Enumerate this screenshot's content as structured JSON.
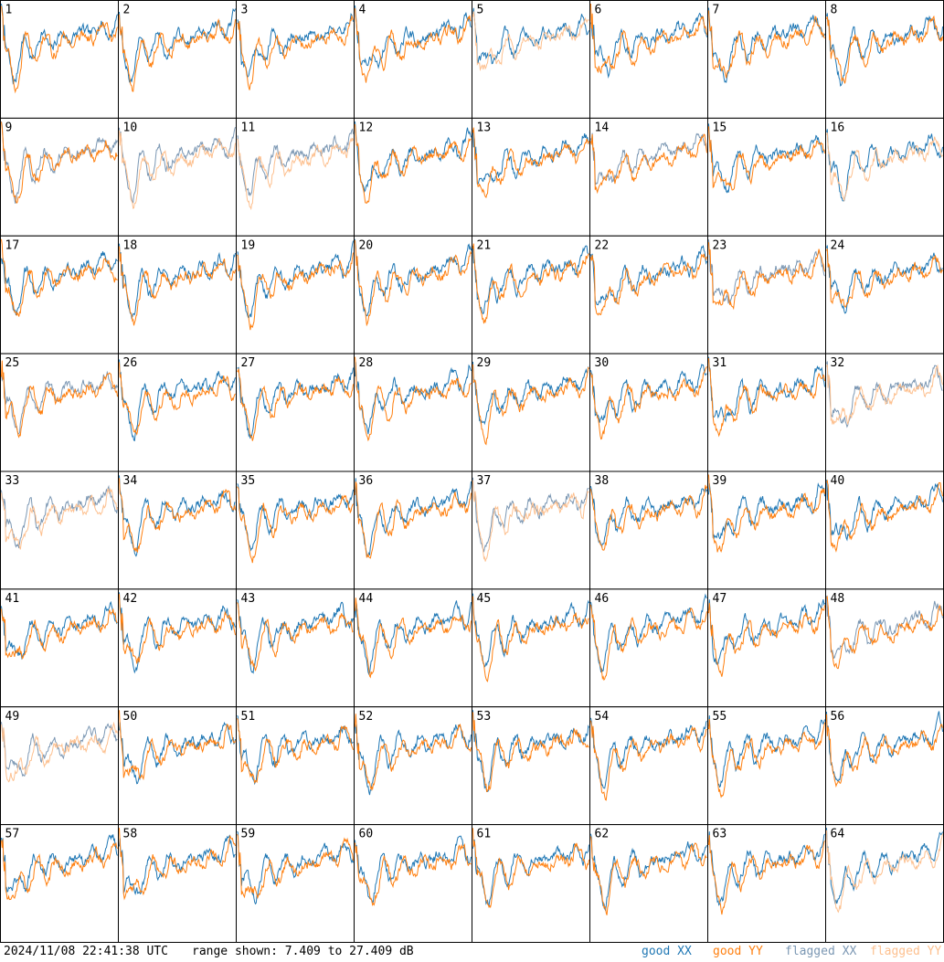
{
  "footer": {
    "timestamp": "2024/11/08 22:41:38 UTC",
    "range": "range shown: 7.409 to 27.409 dB"
  },
  "legend": [
    {
      "label": "good XX",
      "color": "#1f77b4"
    },
    {
      "label": "good YY",
      "color": "#ff7f0e"
    },
    {
      "label": "flagged XX",
      "color": "#7b97b3"
    },
    {
      "label": "flagged YY",
      "color": "#fdc08f"
    }
  ],
  "chart_data": {
    "type": "line",
    "layout": "small-multiples 8x8",
    "ylim": [
      7.409,
      27.409
    ],
    "y_unit": "dB",
    "panels": [
      {
        "id": "1",
        "xx": "good",
        "yy": "good"
      },
      {
        "id": "2",
        "xx": "good",
        "yy": "good"
      },
      {
        "id": "3",
        "xx": "good",
        "yy": "good"
      },
      {
        "id": "4",
        "xx": "good",
        "yy": "good"
      },
      {
        "id": "5",
        "xx": "good",
        "yy": "flagged"
      },
      {
        "id": "6",
        "xx": "good",
        "yy": "good"
      },
      {
        "id": "7",
        "xx": "good",
        "yy": "good"
      },
      {
        "id": "8",
        "xx": "good",
        "yy": "good"
      },
      {
        "id": "9",
        "xx": "flagged",
        "yy": "good"
      },
      {
        "id": "10",
        "xx": "flagged",
        "yy": "flagged"
      },
      {
        "id": "11",
        "xx": "flagged",
        "yy": "flagged"
      },
      {
        "id": "12",
        "xx": "good",
        "yy": "good"
      },
      {
        "id": "13",
        "xx": "good",
        "yy": "good"
      },
      {
        "id": "14",
        "xx": "flagged",
        "yy": "good"
      },
      {
        "id": "15",
        "xx": "good",
        "yy": "good"
      },
      {
        "id": "16",
        "xx": "good",
        "yy": "flagged"
      },
      {
        "id": "17",
        "xx": "good",
        "yy": "good"
      },
      {
        "id": "18",
        "xx": "good",
        "yy": "good"
      },
      {
        "id": "19",
        "xx": "good",
        "yy": "good"
      },
      {
        "id": "20",
        "xx": "good",
        "yy": "good"
      },
      {
        "id": "21",
        "xx": "good",
        "yy": "good"
      },
      {
        "id": "22",
        "xx": "good",
        "yy": "good"
      },
      {
        "id": "23",
        "xx": "flagged",
        "yy": "good"
      },
      {
        "id": "24",
        "xx": "good",
        "yy": "good"
      },
      {
        "id": "25",
        "xx": "flagged",
        "yy": "good"
      },
      {
        "id": "26",
        "xx": "good",
        "yy": "good"
      },
      {
        "id": "27",
        "xx": "good",
        "yy": "good"
      },
      {
        "id": "28",
        "xx": "good",
        "yy": "good"
      },
      {
        "id": "29",
        "xx": "good",
        "yy": "good"
      },
      {
        "id": "30",
        "xx": "good",
        "yy": "good"
      },
      {
        "id": "31",
        "xx": "good",
        "yy": "good"
      },
      {
        "id": "32",
        "xx": "flagged",
        "yy": "flagged"
      },
      {
        "id": "33",
        "xx": "flagged",
        "yy": "flagged"
      },
      {
        "id": "34",
        "xx": "good",
        "yy": "good"
      },
      {
        "id": "35",
        "xx": "good",
        "yy": "good"
      },
      {
        "id": "36",
        "xx": "good",
        "yy": "good"
      },
      {
        "id": "37",
        "xx": "flagged",
        "yy": "flagged"
      },
      {
        "id": "38",
        "xx": "good",
        "yy": "good"
      },
      {
        "id": "39",
        "xx": "good",
        "yy": "good"
      },
      {
        "id": "40",
        "xx": "good",
        "yy": "good"
      },
      {
        "id": "41",
        "xx": "good",
        "yy": "good"
      },
      {
        "id": "42",
        "xx": "good",
        "yy": "good"
      },
      {
        "id": "43",
        "xx": "good",
        "yy": "good"
      },
      {
        "id": "44",
        "xx": "good",
        "yy": "good"
      },
      {
        "id": "45",
        "xx": "good",
        "yy": "good"
      },
      {
        "id": "46",
        "xx": "good",
        "yy": "good"
      },
      {
        "id": "47",
        "xx": "good",
        "yy": "good"
      },
      {
        "id": "48",
        "xx": "flagged",
        "yy": "good"
      },
      {
        "id": "49",
        "xx": "flagged",
        "yy": "flagged"
      },
      {
        "id": "50",
        "xx": "good",
        "yy": "good"
      },
      {
        "id": "51",
        "xx": "good",
        "yy": "good"
      },
      {
        "id": "52",
        "xx": "good",
        "yy": "good"
      },
      {
        "id": "53",
        "xx": "good",
        "yy": "good"
      },
      {
        "id": "54",
        "xx": "good",
        "yy": "good"
      },
      {
        "id": "55",
        "xx": "good",
        "yy": "good"
      },
      {
        "id": "56",
        "xx": "good",
        "yy": "good"
      },
      {
        "id": "57",
        "xx": "good",
        "yy": "good"
      },
      {
        "id": "58",
        "xx": "good",
        "yy": "good"
      },
      {
        "id": "59",
        "xx": "good",
        "yy": "good"
      },
      {
        "id": "60",
        "xx": "good",
        "yy": "good"
      },
      {
        "id": "61",
        "xx": "good",
        "yy": "good"
      },
      {
        "id": "62",
        "xx": "good",
        "yy": "good"
      },
      {
        "id": "63",
        "xx": "good",
        "yy": "good"
      },
      {
        "id": "64",
        "xx": "good",
        "yy": "flagged"
      }
    ]
  }
}
